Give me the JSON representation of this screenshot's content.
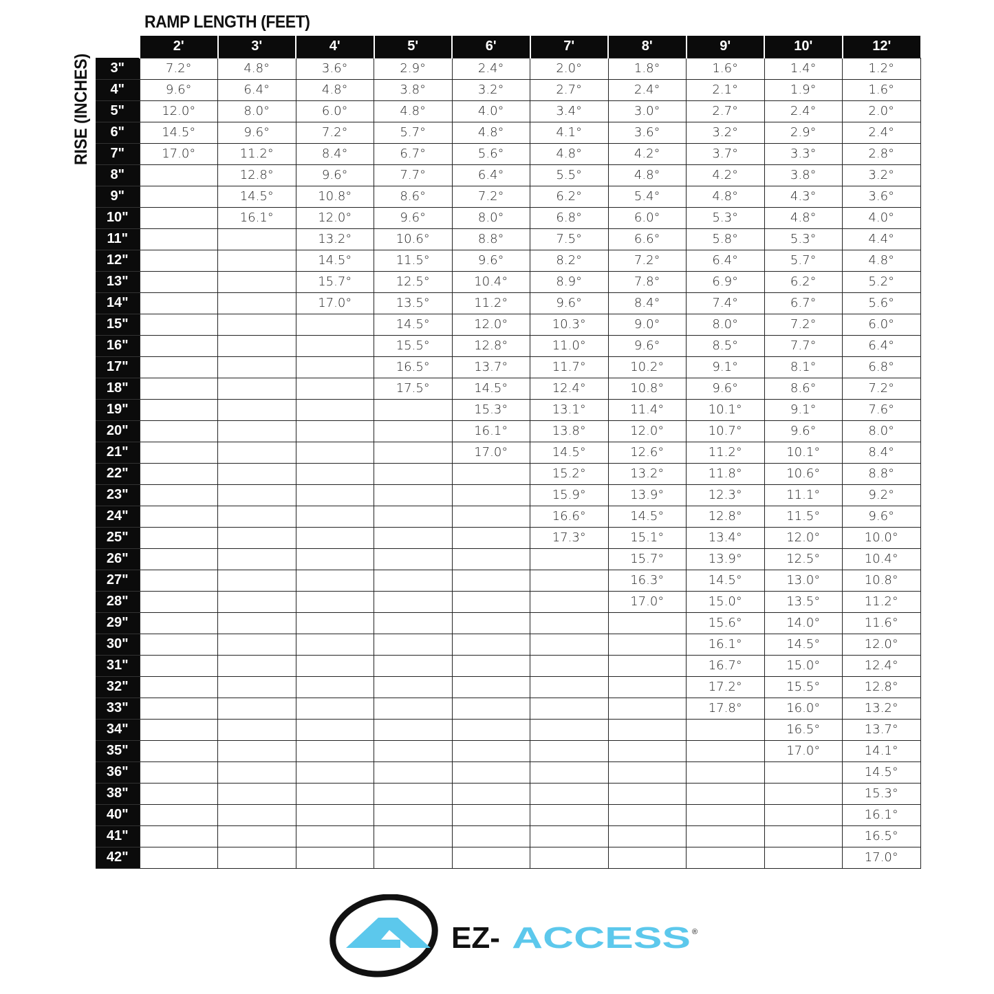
{
  "chart_data": {
    "type": "table",
    "title": "RAMP LENGTH (FEET)",
    "ylabel": "RISE (INCHES)",
    "columns": [
      "2'",
      "3'",
      "4'",
      "5'",
      "6'",
      "7'",
      "8'",
      "9'",
      "10'",
      "12'"
    ],
    "rows": [
      {
        "rise": "3\"",
        "values": [
          "7.2°",
          "4.8°",
          "3.6°",
          "2.9°",
          "2.4°",
          "2.0°",
          "1.8°",
          "1.6°",
          "1.4°",
          "1.2°"
        ]
      },
      {
        "rise": "4\"",
        "values": [
          "9.6°",
          "6.4°",
          "4.8°",
          "3.8°",
          "3.2°",
          "2.7°",
          "2.4°",
          "2.1°",
          "1.9°",
          "1.6°"
        ]
      },
      {
        "rise": "5\"",
        "values": [
          "12.0°",
          "8.0°",
          "6.0°",
          "4.8°",
          "4.0°",
          "3.4°",
          "3.0°",
          "2.7°",
          "2.4°",
          "2.0°"
        ]
      },
      {
        "rise": "6\"",
        "values": [
          "14.5°",
          "9.6°",
          "7.2°",
          "5.7°",
          "4.8°",
          "4.1°",
          "3.6°",
          "3.2°",
          "2.9°",
          "2.4°"
        ]
      },
      {
        "rise": "7\"",
        "values": [
          "17.0°",
          "11.2°",
          "8.4°",
          "6.7°",
          "5.6°",
          "4.8°",
          "4.2°",
          "3.7°",
          "3.3°",
          "2.8°"
        ]
      },
      {
        "rise": "8\"",
        "values": [
          "",
          "12.8°",
          "9.6°",
          "7.7°",
          "6.4°",
          "5.5°",
          "4.8°",
          "4.2°",
          "3.8°",
          "3.2°"
        ]
      },
      {
        "rise": "9\"",
        "values": [
          "",
          "14.5°",
          "10.8°",
          "8.6°",
          "7.2°",
          "6.2°",
          "5.4°",
          "4.8°",
          "4.3°",
          "3.6°"
        ]
      },
      {
        "rise": "10\"",
        "values": [
          "",
          "16.1°",
          "12.0°",
          "9.6°",
          "8.0°",
          "6.8°",
          "6.0°",
          "5.3°",
          "4.8°",
          "4.0°"
        ]
      },
      {
        "rise": "11\"",
        "values": [
          "",
          "",
          "13.2°",
          "10.6°",
          "8.8°",
          "7.5°",
          "6.6°",
          "5.8°",
          "5.3°",
          "4.4°"
        ]
      },
      {
        "rise": "12\"",
        "values": [
          "",
          "",
          "14.5°",
          "11.5°",
          "9.6°",
          "8.2°",
          "7.2°",
          "6.4°",
          "5.7°",
          "4.8°"
        ]
      },
      {
        "rise": "13\"",
        "values": [
          "",
          "",
          "15.7°",
          "12.5°",
          "10.4°",
          "8.9°",
          "7.8°",
          "6.9°",
          "6.2°",
          "5.2°"
        ]
      },
      {
        "rise": "14\"",
        "values": [
          "",
          "",
          "17.0°",
          "13.5°",
          "11.2°",
          "9.6°",
          "8.4°",
          "7.4°",
          "6.7°",
          "5.6°"
        ]
      },
      {
        "rise": "15\"",
        "values": [
          "",
          "",
          "",
          "14.5°",
          "12.0°",
          "10.3°",
          "9.0°",
          "8.0°",
          "7.2°",
          "6.0°"
        ]
      },
      {
        "rise": "16\"",
        "values": [
          "",
          "",
          "",
          "15.5°",
          "12.8°",
          "11.0°",
          "9.6°",
          "8.5°",
          "7.7°",
          "6.4°"
        ]
      },
      {
        "rise": "17\"",
        "values": [
          "",
          "",
          "",
          "16.5°",
          "13.7°",
          "11.7°",
          "10.2°",
          "9.1°",
          "8.1°",
          "6.8°"
        ]
      },
      {
        "rise": "18\"",
        "values": [
          "",
          "",
          "",
          "17.5°",
          "14.5°",
          "12.4°",
          "10.8°",
          "9.6°",
          "8.6°",
          "7.2°"
        ]
      },
      {
        "rise": "19\"",
        "values": [
          "",
          "",
          "",
          "",
          "15.3°",
          "13.1°",
          "11.4°",
          "10.1°",
          "9.1°",
          "7.6°"
        ]
      },
      {
        "rise": "20\"",
        "values": [
          "",
          "",
          "",
          "",
          "16.1°",
          "13.8°",
          "12.0°",
          "10.7°",
          "9.6°",
          "8.0°"
        ]
      },
      {
        "rise": "21\"",
        "values": [
          "",
          "",
          "",
          "",
          "17.0°",
          "14.5°",
          "12.6°",
          "11.2°",
          "10.1°",
          "8.4°"
        ]
      },
      {
        "rise": "22\"",
        "values": [
          "",
          "",
          "",
          "",
          "",
          "15.2°",
          "13.2°",
          "11.8°",
          "10.6°",
          "8.8°"
        ]
      },
      {
        "rise": "23\"",
        "values": [
          "",
          "",
          "",
          "",
          "",
          "15.9°",
          "13.9°",
          "12.3°",
          "11.1°",
          "9.2°"
        ]
      },
      {
        "rise": "24\"",
        "values": [
          "",
          "",
          "",
          "",
          "",
          "16.6°",
          "14.5°",
          "12.8°",
          "11.5°",
          "9.6°"
        ]
      },
      {
        "rise": "25\"",
        "values": [
          "",
          "",
          "",
          "",
          "",
          "17.3°",
          "15.1°",
          "13.4°",
          "12.0°",
          "10.0°"
        ]
      },
      {
        "rise": "26\"",
        "values": [
          "",
          "",
          "",
          "",
          "",
          "",
          "15.7°",
          "13.9°",
          "12.5°",
          "10.4°"
        ]
      },
      {
        "rise": "27\"",
        "values": [
          "",
          "",
          "",
          "",
          "",
          "",
          "16.3°",
          "14.5°",
          "13.0°",
          "10.8°"
        ]
      },
      {
        "rise": "28\"",
        "values": [
          "",
          "",
          "",
          "",
          "",
          "",
          "17.0°",
          "15.0°",
          "13.5°",
          "11.2°"
        ]
      },
      {
        "rise": "29\"",
        "values": [
          "",
          "",
          "",
          "",
          "",
          "",
          "",
          "15.6°",
          "14.0°",
          "11.6°"
        ]
      },
      {
        "rise": "30\"",
        "values": [
          "",
          "",
          "",
          "",
          "",
          "",
          "",
          "16.1°",
          "14.5°",
          "12.0°"
        ]
      },
      {
        "rise": "31\"",
        "values": [
          "",
          "",
          "",
          "",
          "",
          "",
          "",
          "16.7°",
          "15.0°",
          "12.4°"
        ]
      },
      {
        "rise": "32\"",
        "values": [
          "",
          "",
          "",
          "",
          "",
          "",
          "",
          "17.2°",
          "15.5°",
          "12.8°"
        ]
      },
      {
        "rise": "33\"",
        "values": [
          "",
          "",
          "",
          "",
          "",
          "",
          "",
          "17.8°",
          "16.0°",
          "13.2°"
        ]
      },
      {
        "rise": "34\"",
        "values": [
          "",
          "",
          "",
          "",
          "",
          "",
          "",
          "",
          "16.5°",
          "13.7°"
        ]
      },
      {
        "rise": "35\"",
        "values": [
          "",
          "",
          "",
          "",
          "",
          "",
          "",
          "",
          "17.0°",
          "14.1°"
        ]
      },
      {
        "rise": "36\"",
        "values": [
          "",
          "",
          "",
          "",
          "",
          "",
          "",
          "",
          "",
          "14.5°"
        ]
      },
      {
        "rise": "38\"",
        "values": [
          "",
          "",
          "",
          "",
          "",
          "",
          "",
          "",
          "",
          "15.3°"
        ]
      },
      {
        "rise": "40\"",
        "values": [
          "",
          "",
          "",
          "",
          "",
          "",
          "",
          "",
          "",
          "16.1°"
        ]
      },
      {
        "rise": "41\"",
        "values": [
          "",
          "",
          "",
          "",
          "",
          "",
          "",
          "",
          "",
          "16.5°"
        ]
      },
      {
        "rise": "42\"",
        "values": [
          "",
          "",
          "",
          "",
          "",
          "",
          "",
          "",
          "",
          "17.0°"
        ]
      }
    ]
  },
  "logo": {
    "text_black": "EZ-",
    "text_cyan": "ACCESS",
    "registered": "®",
    "colors": {
      "cyan": "#5cc8ec",
      "black": "#111111"
    }
  }
}
